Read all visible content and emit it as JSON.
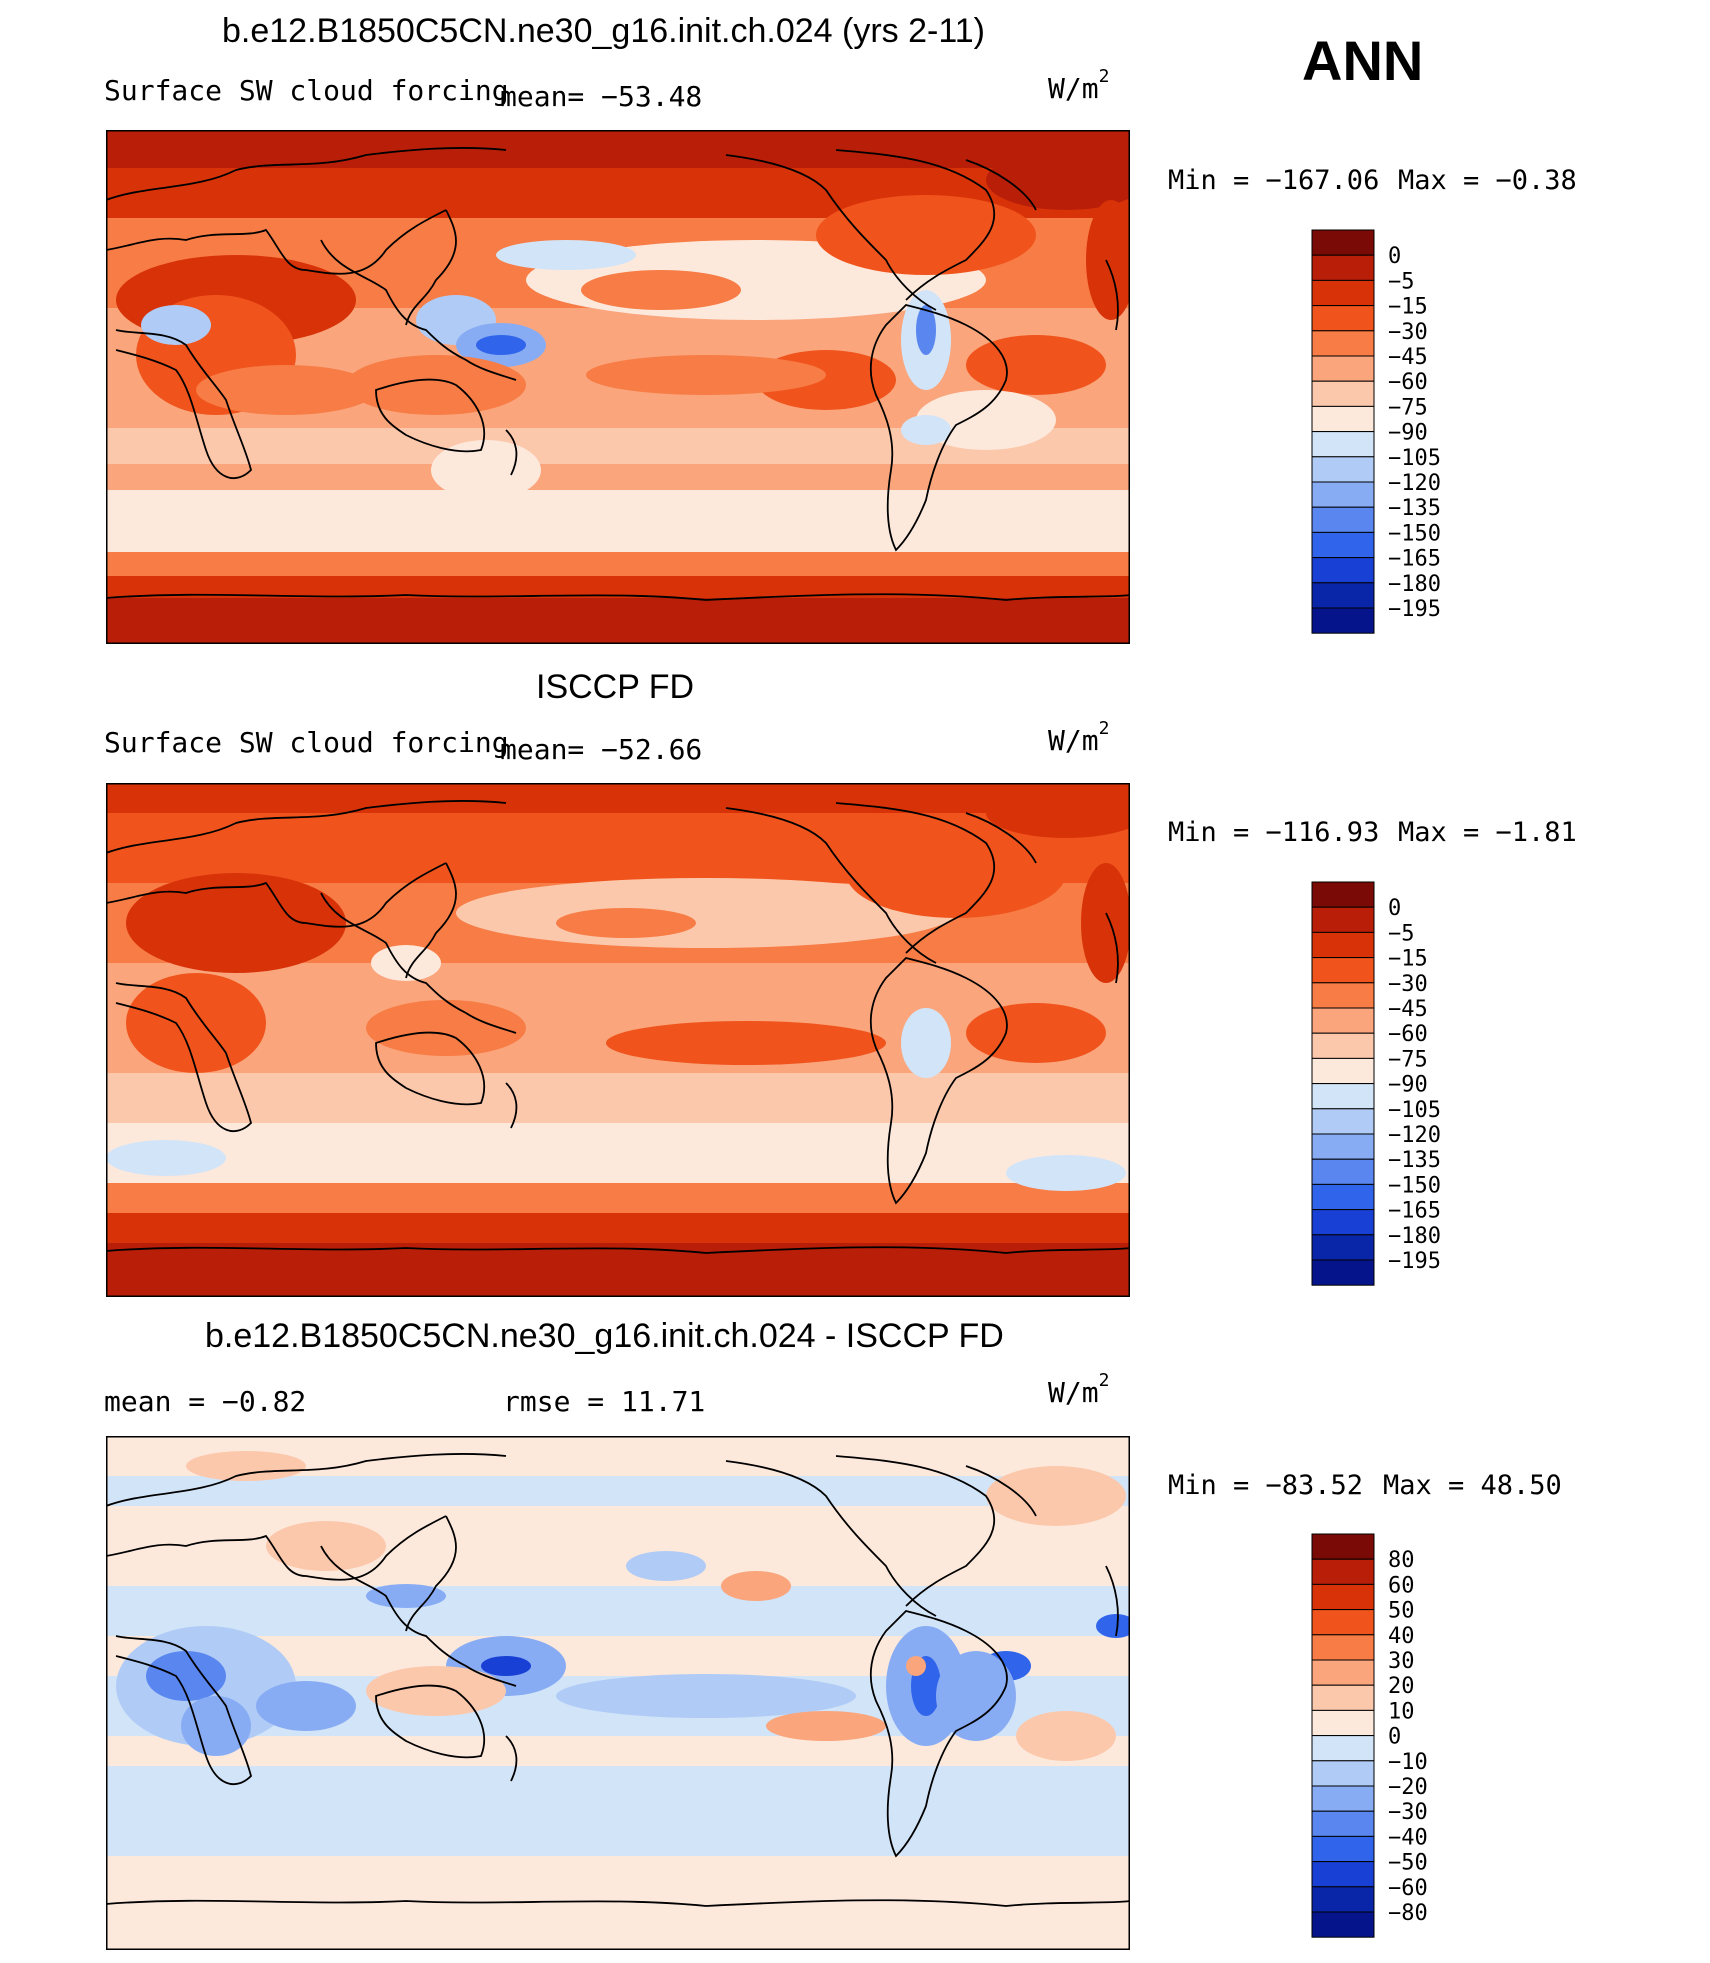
{
  "header": {
    "panel_title_1": "b.e12.B1850C5CN.ne30_g16.init.ch.024 (yrs 2-11)",
    "season": "ANN"
  },
  "panels": [
    {
      "title": "b.e12.B1850C5CN.ne30_g16.init.ch.024 (yrs 2-11)",
      "variable": "Surface SW cloud forcing",
      "mean_text": "mean=  −53.48",
      "unit": "W/m",
      "unit_exp": "2",
      "min_text": "Min  =  −167.06",
      "max_text": "Max  =    −0.38",
      "colorbar": {
        "labels": [
          "0",
          "−5",
          "−15",
          "−30",
          "−45",
          "−60",
          "−75",
          "−90",
          "−105",
          "−120",
          "−135",
          "−150",
          "−165",
          "−180",
          "−195"
        ],
        "colors": [
          "#7a0a06",
          "#b81e08",
          "#d83208",
          "#f0541c",
          "#f77c45",
          "#faa57c",
          "#fcc8ac",
          "#fde9dc",
          "#d2e4f8",
          "#b0ccf6",
          "#88acf4",
          "#5a86f0",
          "#3064ea",
          "#1840d4",
          "#0a26a8",
          "#06148c"
        ]
      }
    },
    {
      "title": "ISCCP FD",
      "variable": "Surface SW cloud forcing",
      "mean_text": "mean=  −52.66",
      "unit": "W/m",
      "unit_exp": "2",
      "min_text": "Min  =  −116.93",
      "max_text": "Max  =    −1.81",
      "colorbar": {
        "labels": [
          "0",
          "−5",
          "−15",
          "−30",
          "−45",
          "−60",
          "−75",
          "−90",
          "−105",
          "−120",
          "−135",
          "−150",
          "−165",
          "−180",
          "−195"
        ],
        "colors": [
          "#7a0a06",
          "#b81e08",
          "#d83208",
          "#f0541c",
          "#f77c45",
          "#faa57c",
          "#fcc8ac",
          "#fde9dc",
          "#d2e4f8",
          "#b0ccf6",
          "#88acf4",
          "#5a86f0",
          "#3064ea",
          "#1840d4",
          "#0a26a8",
          "#06148c"
        ]
      }
    },
    {
      "title": "b.e12.B1850C5CN.ne30_g16.init.ch.024 - ISCCP FD",
      "mean_text": "mean  =    −0.82",
      "rmse_text": "rmse  =    11.71",
      "unit": "W/m",
      "unit_exp": "2",
      "min_text": "Min  =  −83.52",
      "max_text": "Max  =    48.50",
      "colorbar": {
        "labels": [
          "80",
          "60",
          "50",
          "40",
          "30",
          "20",
          "10",
          "0",
          "−10",
          "−20",
          "−30",
          "−40",
          "−50",
          "−60",
          "−80"
        ],
        "colors": [
          "#7a0a06",
          "#b81e08",
          "#d83208",
          "#f0541c",
          "#f77c45",
          "#faa57c",
          "#fcc8ac",
          "#fde9dc",
          "#d2e4f8",
          "#b0ccf6",
          "#88acf4",
          "#5a86f0",
          "#3064ea",
          "#1840d4",
          "#0a26a8",
          "#06148c"
        ]
      }
    }
  ]
}
